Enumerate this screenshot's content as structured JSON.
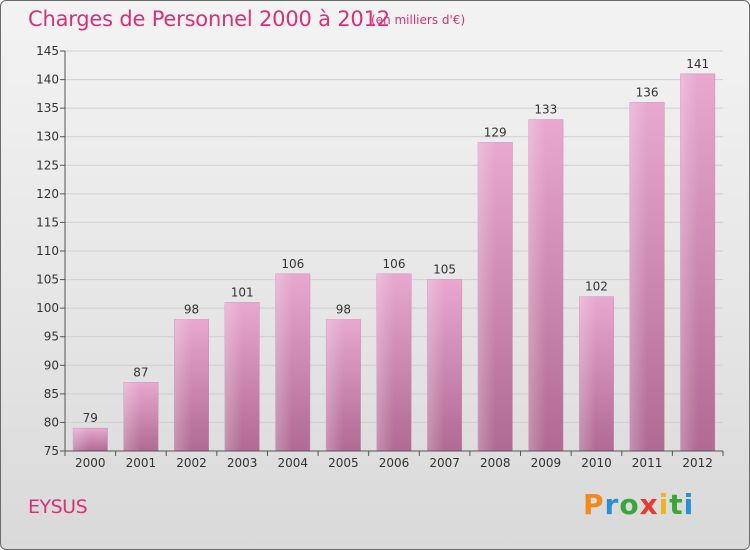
{
  "chart_data": {
    "type": "bar",
    "title": "Charges de Personnel 2000 à 2012",
    "subtitle": "(en milliers d'€)",
    "categories": [
      "2000",
      "2001",
      "2002",
      "2003",
      "2004",
      "2005",
      "2006",
      "2007",
      "2008",
      "2009",
      "2010",
      "2011",
      "2012"
    ],
    "values": [
      79,
      87,
      98,
      101,
      106,
      98,
      106,
      105,
      129,
      133,
      102,
      136,
      141
    ],
    "ylim": [
      75,
      145
    ],
    "yticks": [
      75,
      80,
      85,
      90,
      95,
      100,
      105,
      110,
      115,
      120,
      125,
      130,
      135,
      140,
      145
    ],
    "grid": true,
    "bar_color_top": "#e8a8d0",
    "bar_color_bottom": "#b06a93"
  },
  "footer": {
    "commune": "EYSUS",
    "logo_letters": [
      "P",
      "r",
      "o",
      "x",
      "i",
      "t",
      "i"
    ],
    "logo_colors": [
      "#f08a1c",
      "#2a8fd6",
      "#3aa63a",
      "#e63b2e",
      "#f2b21c",
      "#3aa63a",
      "#2a8fd6"
    ]
  }
}
